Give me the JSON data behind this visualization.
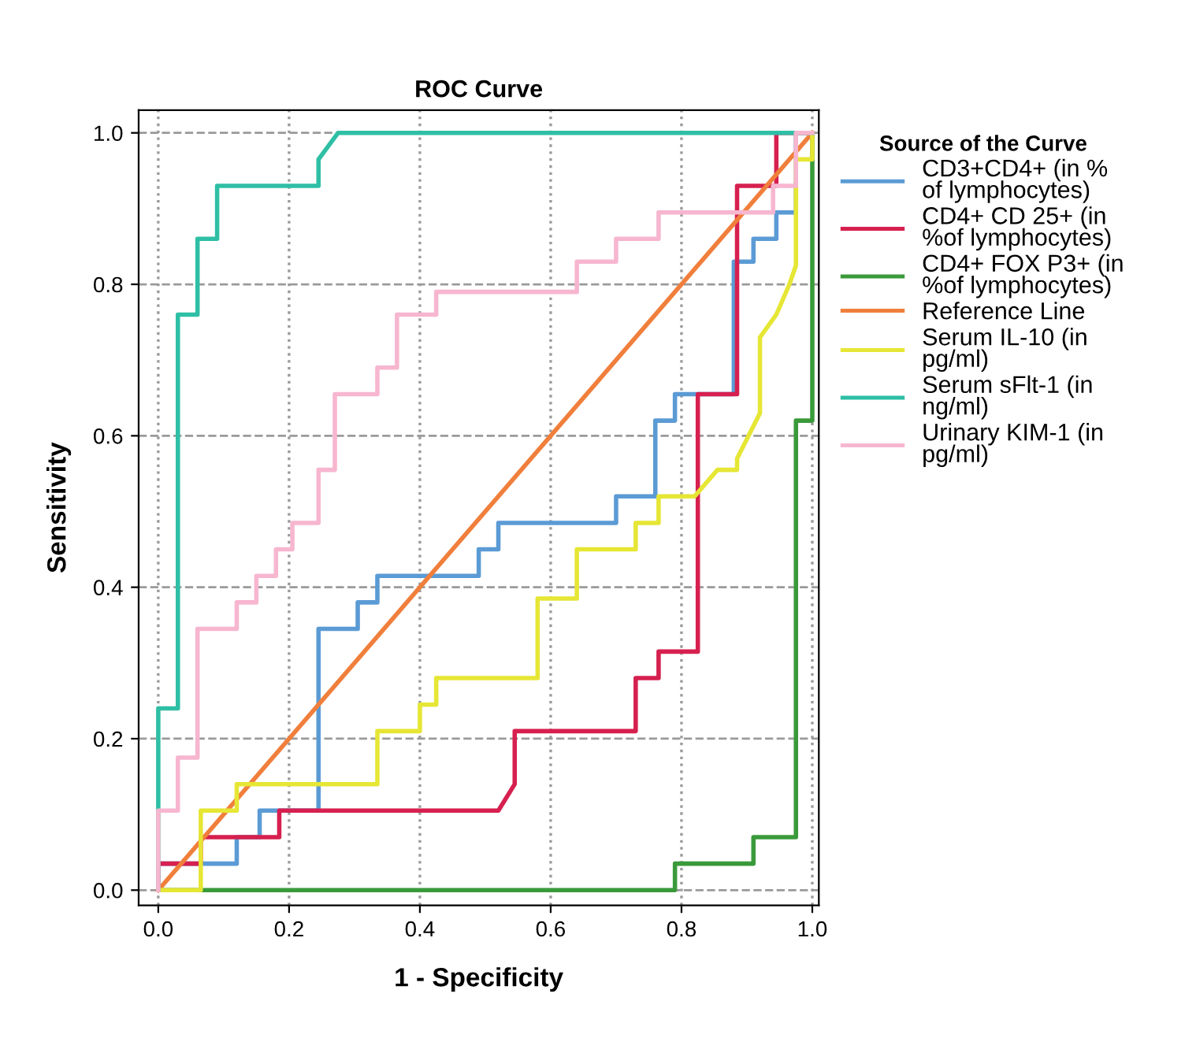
{
  "chart_data": {
    "type": "line",
    "title": "ROC Curve",
    "xlabel": "1 - Specificity",
    "ylabel": "Sensitivity",
    "legend_title": "Source of the Curve",
    "legend": "right",
    "grid": true,
    "marker": "none",
    "line_style": "solid",
    "xlim": [
      -0.03,
      1.01
    ],
    "ylim": [
      -0.02,
      1.03
    ],
    "xticks": [
      {
        "value": 0,
        "label": "0.0"
      },
      0.2,
      0.4,
      0.6,
      0.8,
      {
        "value": 1,
        "label": "1.0"
      }
    ],
    "yticks": [
      {
        "value": 0,
        "label": "0.0"
      },
      0.2,
      0.4,
      0.6,
      0.8,
      {
        "value": 1,
        "label": "1.0"
      }
    ],
    "series": [
      {
        "name": "CD3+CD4+ (in % of lymphocytes)",
        "color": "#5b9bd5",
        "x": [
          0,
          0,
          0.12,
          0.12,
          0.155,
          0.155,
          0.245,
          0.245,
          0.305,
          0.305,
          0.335,
          0.335,
          0.49,
          0.49,
          0.52,
          0.52,
          0.7,
          0.7,
          0.76,
          0.76,
          0.79,
          0.79,
          0.88,
          0.88,
          0.91,
          0.91,
          0.945,
          0.945,
          0.975,
          0.975,
          1
        ],
        "values": [
          0,
          0.035,
          0.035,
          0.07,
          0.07,
          0.105,
          0.105,
          0.345,
          0.345,
          0.38,
          0.38,
          0.415,
          0.415,
          0.45,
          0.45,
          0.485,
          0.485,
          0.52,
          0.52,
          0.62,
          0.62,
          0.655,
          0.655,
          0.83,
          0.83,
          0.86,
          0.86,
          0.895,
          0.895,
          1,
          1
        ]
      },
      {
        "name": "CD4+ CD 25+ (in %of lymphocytes)",
        "color": "#d6204f",
        "x": [
          0,
          0,
          0.065,
          0.065,
          0.185,
          0.185,
          0.52,
          0.545,
          0.545,
          0.73,
          0.73,
          0.765,
          0.765,
          0.825,
          0.825,
          0.885,
          0.885,
          0.945,
          0.945,
          1
        ],
        "values": [
          0,
          0.035,
          0.035,
          0.07,
          0.07,
          0.105,
          0.105,
          0.14,
          0.21,
          0.21,
          0.28,
          0.28,
          0.315,
          0.315,
          0.655,
          0.655,
          0.93,
          0.93,
          1,
          1
        ]
      },
      {
        "name": "CD4+ FOX P3+ (in %of lymphocytes)",
        "color": "#3a9a3a",
        "x": [
          0,
          0.79,
          0.79,
          0.91,
          0.91,
          0.975,
          0.975,
          1,
          1
        ],
        "values": [
          0,
          0,
          0.035,
          0.035,
          0.07,
          0.07,
          0.62,
          0.62,
          1
        ]
      },
      {
        "name": "Reference Line",
        "color": "#f07f3c",
        "x": [
          0,
          1
        ],
        "values": [
          0,
          1
        ]
      },
      {
        "name": "Serum IL-10 (in pg/ml)",
        "color": "#e6e635",
        "x": [
          0,
          0.065,
          0.065,
          0.12,
          0.12,
          0.335,
          0.335,
          0.4,
          0.4,
          0.425,
          0.425,
          0.58,
          0.58,
          0.64,
          0.64,
          0.73,
          0.73,
          0.765,
          0.765,
          0.82,
          0.855,
          0.885,
          0.885,
          0.92,
          0.92,
          0.945,
          0.965,
          0.975,
          0.975,
          1,
          1
        ],
        "values": [
          0,
          0,
          0.105,
          0.105,
          0.14,
          0.14,
          0.21,
          0.21,
          0.245,
          0.245,
          0.28,
          0.28,
          0.385,
          0.385,
          0.45,
          0.45,
          0.485,
          0.485,
          0.52,
          0.52,
          0.555,
          0.555,
          0.57,
          0.63,
          0.73,
          0.76,
          0.8,
          0.825,
          0.965,
          0.965,
          1
        ]
      },
      {
        "name": "Serum sFlt-1 (in ng/ml)",
        "color": "#2ebfa5",
        "x": [
          0,
          0,
          0.03,
          0.03,
          0.06,
          0.06,
          0.09,
          0.09,
          0.245,
          0.245,
          0.275,
          1
        ],
        "values": [
          0,
          0.24,
          0.24,
          0.76,
          0.76,
          0.86,
          0.86,
          0.93,
          0.93,
          0.965,
          1,
          1
        ]
      },
      {
        "name": "Urinary KIM-1 (in pg/ml)",
        "color": "#f7b6cf",
        "x": [
          0,
          0,
          0.03,
          0.03,
          0.06,
          0.06,
          0.12,
          0.12,
          0.15,
          0.15,
          0.18,
          0.18,
          0.205,
          0.205,
          0.245,
          0.245,
          0.27,
          0.27,
          0.335,
          0.335,
          0.365,
          0.365,
          0.425,
          0.425,
          0.64,
          0.64,
          0.7,
          0.7,
          0.765,
          0.765,
          0.94,
          0.94,
          0.975,
          0.975,
          1
        ],
        "values": [
          0,
          0.105,
          0.105,
          0.175,
          0.175,
          0.345,
          0.345,
          0.38,
          0.38,
          0.415,
          0.415,
          0.45,
          0.45,
          0.485,
          0.485,
          0.555,
          0.555,
          0.655,
          0.655,
          0.69,
          0.69,
          0.76,
          0.76,
          0.79,
          0.79,
          0.83,
          0.83,
          0.86,
          0.86,
          0.895,
          0.895,
          0.93,
          0.93,
          1,
          1
        ]
      }
    ]
  }
}
